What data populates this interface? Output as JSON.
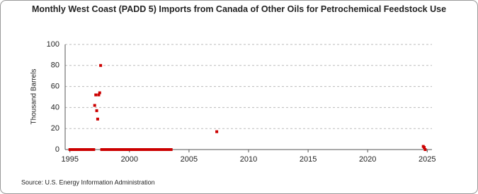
{
  "chart_data": {
    "type": "scatter",
    "title": "Monthly West Coast (PADD 5) Imports from Canada of Other Oils for Petrochemical Feedstock Use",
    "y_label": "Thousand Barrels",
    "source": "Source: U.S. Energy Information Administration",
    "color": "#cc0000",
    "xlim": [
      1994.6,
      2025.4
    ],
    "ylim": [
      0,
      100
    ],
    "xticks": [
      1995,
      2000,
      2005,
      2010,
      2015,
      2020,
      2025
    ],
    "yticks": [
      0,
      20,
      40,
      60,
      80,
      100
    ],
    "grid": true,
    "x": [
      1995,
      1995.08,
      1995.17,
      1995.25,
      1995.33,
      1995.42,
      1995.5,
      1995.58,
      1995.67,
      1995.75,
      1995.83,
      1995.92,
      1996,
      1996.08,
      1996.17,
      1996.25,
      1996.33,
      1996.42,
      1996.5,
      1996.58,
      1996.67,
      1996.75,
      1996.83,
      1996.92,
      1997,
      1997.08,
      1997.17,
      1997.25,
      1997.33,
      1997.42,
      1997.5,
      1997.58,
      1997.67,
      1997.75,
      1997.83,
      1997.92,
      1998,
      1998.08,
      1998.17,
      1998.25,
      1998.33,
      1998.42,
      1998.5,
      1998.58,
      1998.67,
      1998.75,
      1998.83,
      1998.92,
      1999,
      1999.08,
      1999.17,
      1999.25,
      1999.33,
      1999.42,
      1999.5,
      1999.58,
      1999.67,
      1999.75,
      1999.83,
      1999.92,
      2000,
      2000.08,
      2000.17,
      2000.25,
      2000.33,
      2000.42,
      2000.5,
      2000.58,
      2000.67,
      2000.75,
      2000.83,
      2000.92,
      2001,
      2001.08,
      2001.17,
      2001.25,
      2001.33,
      2001.42,
      2001.5,
      2001.58,
      2001.67,
      2001.75,
      2001.83,
      2001.92,
      2002,
      2002.08,
      2002.17,
      2002.25,
      2002.33,
      2002.42,
      2002.5,
      2002.58,
      2002.67,
      2002.75,
      2002.83,
      2002.92,
      2003,
      2003.08,
      2003.17,
      2003.25,
      2003.33,
      2003.42,
      2003.5,
      2007.33,
      2024.67,
      2024.75,
      2024.83
    ],
    "values": [
      0,
      0,
      0,
      0,
      0,
      0,
      0,
      0,
      0,
      0,
      0,
      0,
      0,
      0,
      0,
      0,
      0,
      0,
      0,
      0,
      0,
      0,
      0,
      0,
      0,
      42,
      52,
      37,
      29,
      52,
      54,
      80,
      0,
      0,
      0,
      0,
      0,
      0,
      0,
      0,
      0,
      0,
      0,
      0,
      0,
      0,
      0,
      0,
      0,
      0,
      0,
      0,
      0,
      0,
      0,
      0,
      0,
      0,
      0,
      0,
      0,
      0,
      0,
      0,
      0,
      0,
      0,
      0,
      0,
      0,
      0,
      0,
      0,
      0,
      0,
      0,
      0,
      0,
      0,
      0,
      0,
      0,
      0,
      0,
      0,
      0,
      0,
      0,
      0,
      0,
      0,
      0,
      0,
      0,
      0,
      0,
      0,
      0,
      0,
      0,
      0,
      0,
      0,
      17,
      3,
      2,
      0
    ]
  }
}
